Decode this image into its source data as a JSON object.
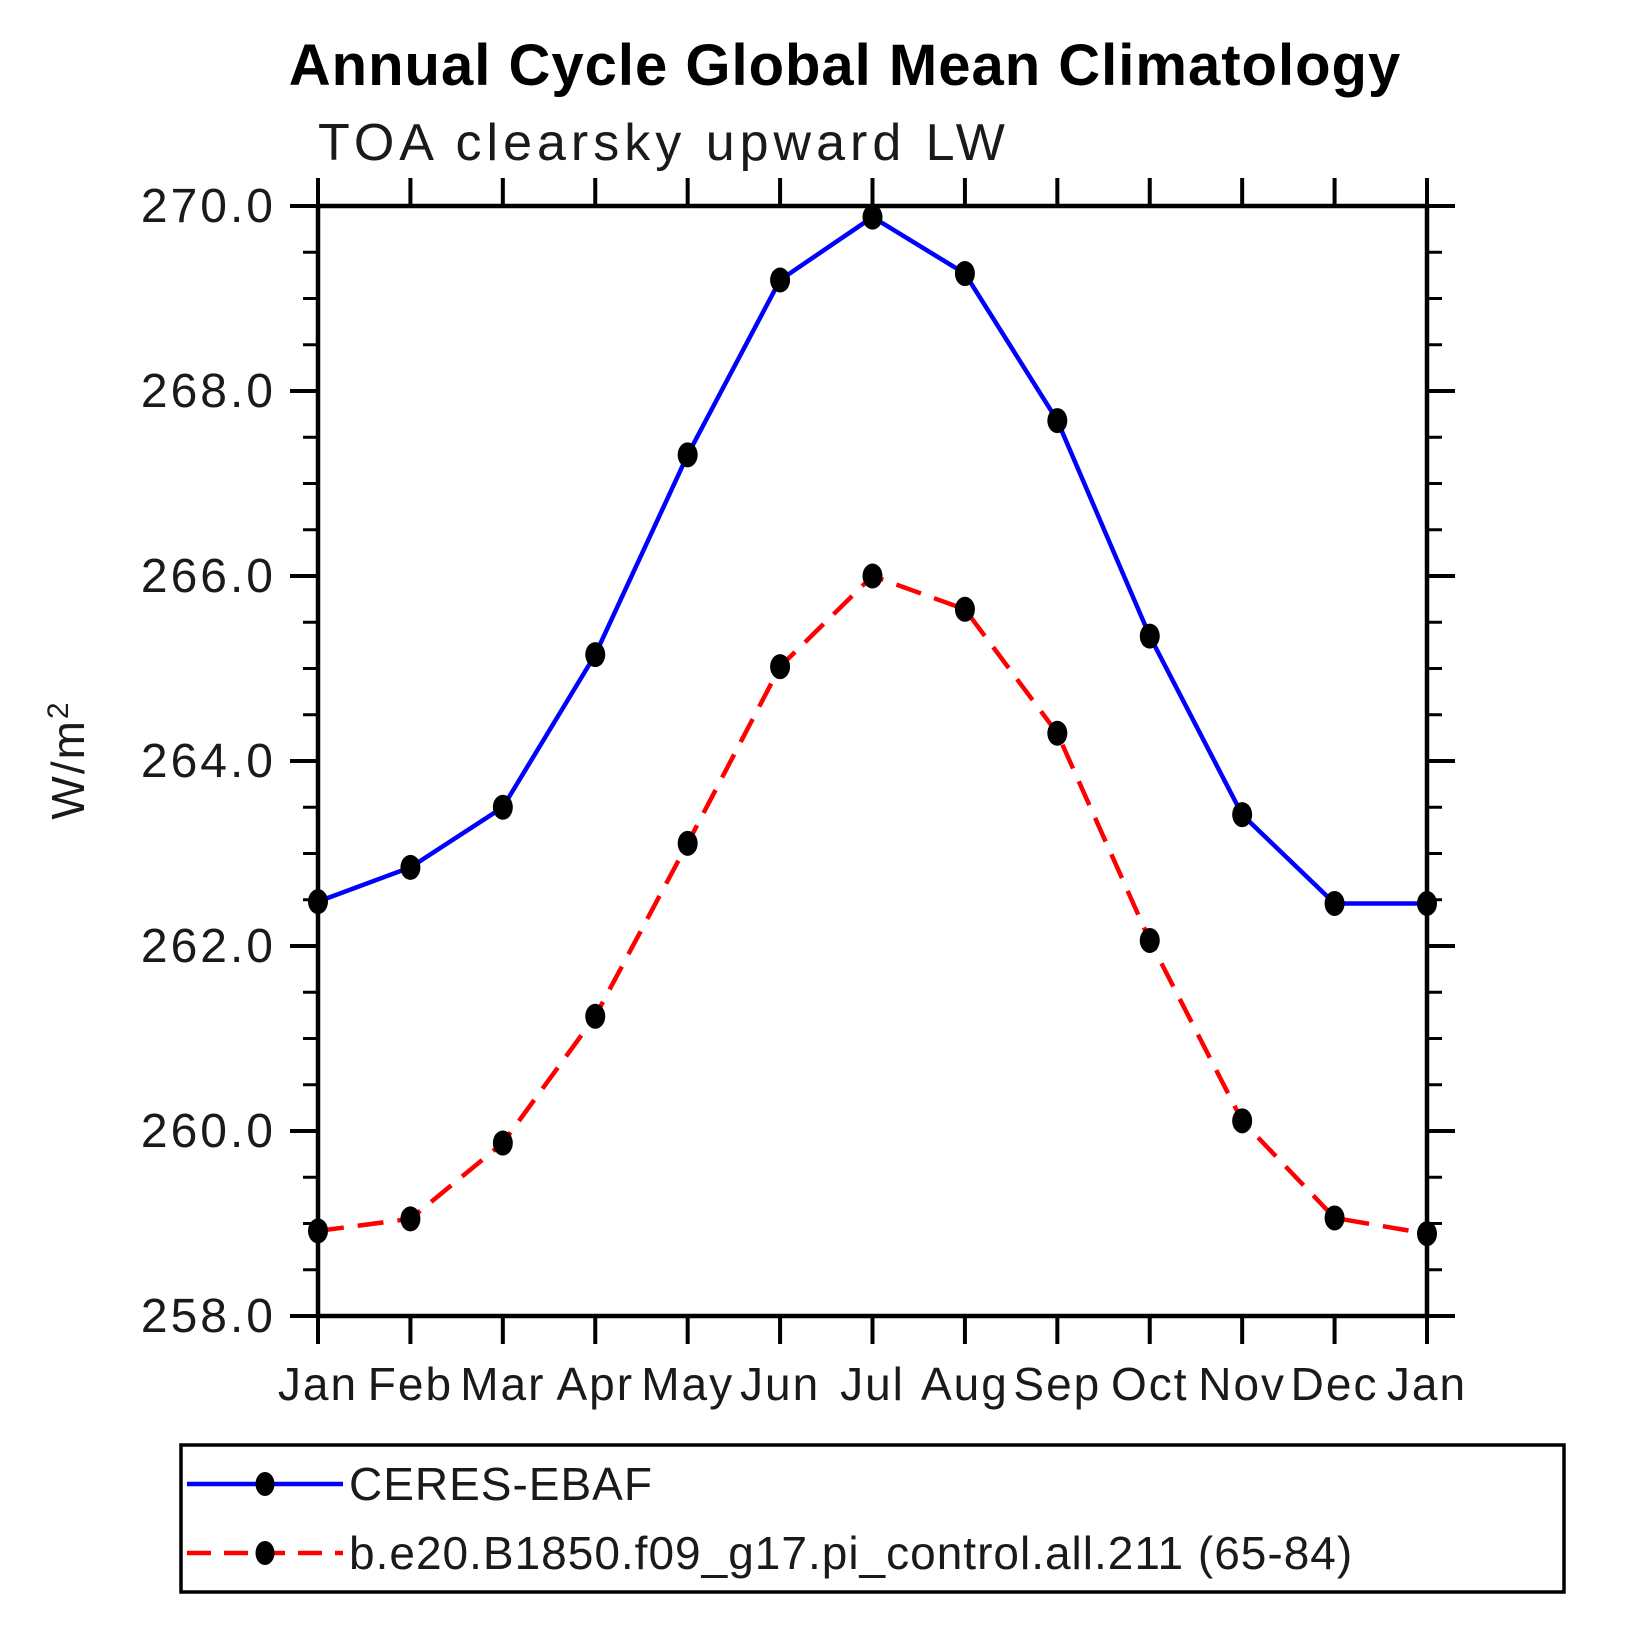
{
  "title": "Annual Cycle Global Mean Climatology",
  "subtitle": "TOA clearsky upward LW",
  "chart_data": {
    "type": "line",
    "title": "Annual Cycle Global Mean Climatology",
    "subtitle": "TOA clearsky upward LW",
    "xlabel": "",
    "ylabel": "W/m²",
    "ylim": [
      258.0,
      270.0
    ],
    "y_major_step": 2.0,
    "y_minor_step": 0.5,
    "y_tick_labels": [
      "258.0",
      "260.0",
      "262.0",
      "264.0",
      "266.0",
      "268.0",
      "270.0"
    ],
    "x_categories": [
      "Jan",
      "Feb",
      "Mar",
      "Apr",
      "May",
      "Jun",
      "Jul",
      "Aug",
      "Sep",
      "Oct",
      "Nov",
      "Dec",
      "Jan"
    ],
    "grid": false,
    "legend_position": "bottom-box",
    "axis_color": "#000000",
    "marker": "filled-black-ellipse",
    "marker_color": "#000000",
    "series": [
      {
        "name": "CERES-EBAF",
        "color": "#0000ff",
        "line_style": "solid",
        "values": [
          262.48,
          262.85,
          263.5,
          265.15,
          267.31,
          269.2,
          269.88,
          269.27,
          267.68,
          265.35,
          263.42,
          262.46,
          262.46
        ]
      },
      {
        "name": "b.e20.B1850.f09_g17.pi_control.all.211 (65-84)",
        "color": "#ff0000",
        "line_style": "dashed",
        "values": [
          258.92,
          259.05,
          259.87,
          261.24,
          263.11,
          265.02,
          266.0,
          265.64,
          264.3,
          262.06,
          260.11,
          259.06,
          258.89
        ]
      }
    ]
  }
}
